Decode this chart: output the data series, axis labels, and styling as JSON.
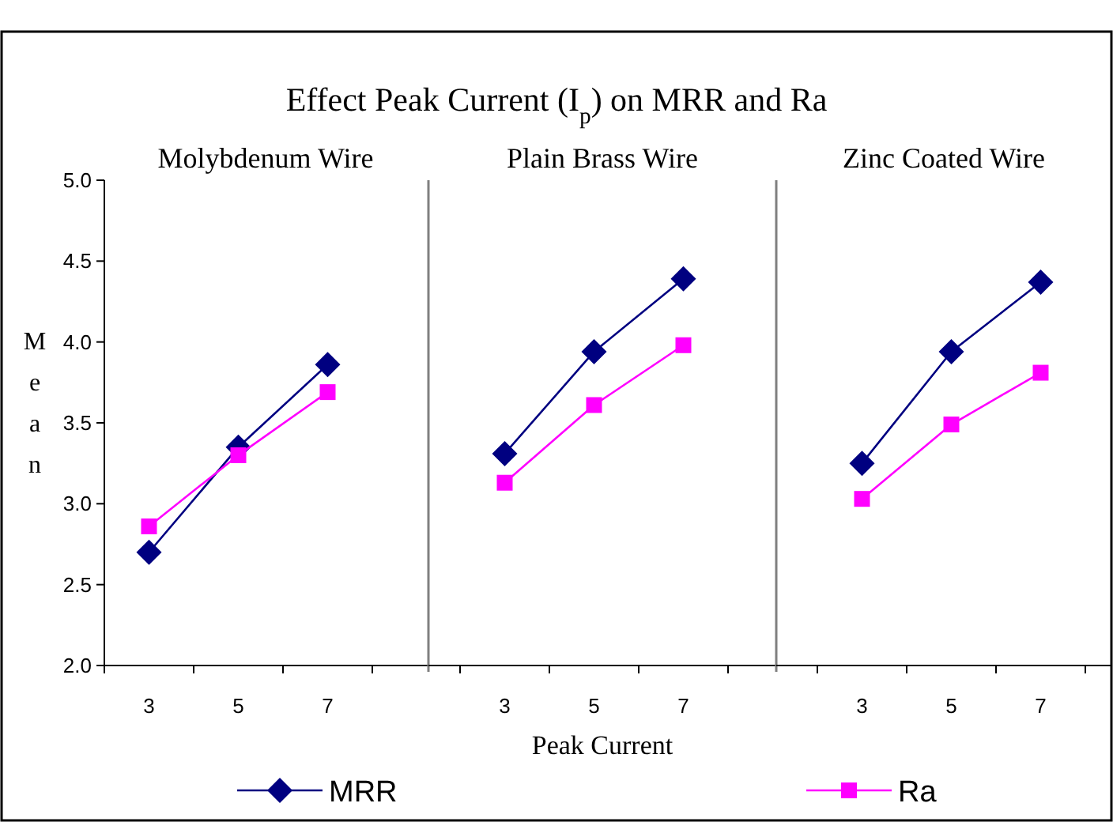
{
  "chart_data": [
    {
      "type": "line",
      "title": "Effect Peak Current (I$_{p}$) on MRR and Ra",
      "subtitle": "Molybdenum Wire",
      "ylabel": "Mean",
      "categories": [
        "3",
        "5",
        "7"
      ],
      "ylim": [
        2.0,
        5.0
      ],
      "yticks": [
        {
          "value": 2,
          "label": "2.0"
        },
        2.5,
        {
          "value": 3,
          "label": "3.0"
        },
        3.5,
        {
          "value": 4,
          "label": "4.0"
        },
        4.5,
        {
          "value": 5,
          "label": "5.0"
        }
      ],
      "legend": "bottom",
      "series": [
        {
          "name": "MRR",
          "color": "#000080",
          "marker": "diamond",
          "values": [
            2.7,
            3.35,
            3.86
          ]
        },
        {
          "name": "Ra",
          "color": "#ff00ff",
          "marker": "square",
          "values": [
            2.86,
            3.3,
            3.69
          ]
        }
      ]
    },
    {
      "type": "line",
      "subtitle": "Plain Brass Wire",
      "xlabel": "Peak Current",
      "categories": [
        "3",
        "5",
        "7"
      ],
      "ylim": [
        2.0,
        5.0
      ],
      "tick_labels": "x",
      "series": [
        {
          "color": "#000080",
          "marker": "diamond",
          "values": [
            3.31,
            3.94,
            4.39
          ]
        },
        {
          "color": "#ff00ff",
          "marker": "square",
          "values": [
            3.13,
            3.61,
            3.98
          ]
        }
      ]
    },
    {
      "type": "line",
      "subtitle": "Zinc Coated Wire",
      "categories": [
        "3",
        "5",
        "7"
      ],
      "ylim": [
        2.0,
        5.0
      ],
      "tick_labels": "x",
      "series": [
        {
          "color": "#000080",
          "marker": "diamond",
          "values": [
            3.25,
            3.94,
            4.37
          ]
        },
        {
          "color": "#ff00ff",
          "marker": "square",
          "values": [
            3.03,
            3.49,
            3.81
          ]
        }
      ]
    }
  ]
}
